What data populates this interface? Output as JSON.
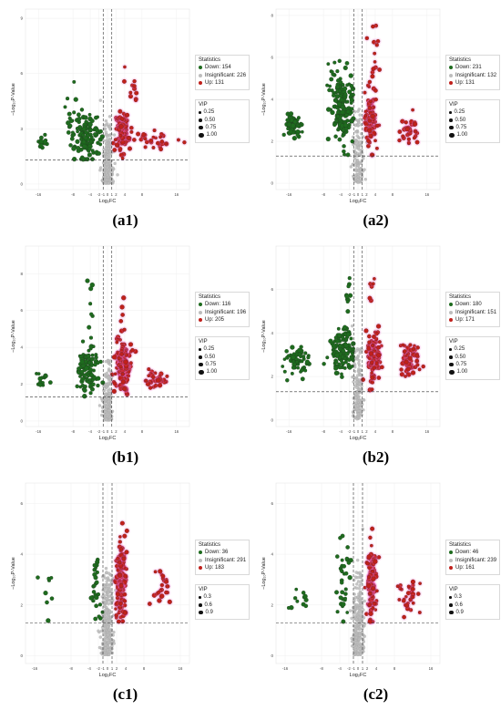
{
  "colors": {
    "down": "#1e6b1e",
    "insig": "#bdbdbd",
    "up": "#c0201b",
    "halo": "#ff6ad5"
  },
  "legend_titles": {
    "stats": "Statistics",
    "vip": "VIP"
  },
  "panels": [
    {
      "id": "a1",
      "label": "(a1)",
      "down": 154,
      "insig": 226,
      "up": 131,
      "xmin": -19,
      "xmax": 19,
      "ymin": -0.3,
      "ymax": 9.5,
      "xticks": [
        -16,
        -8,
        -4,
        -2,
        -1,
        0,
        1,
        2,
        4,
        8,
        16
      ],
      "yticks": [
        0,
        3,
        6,
        9
      ],
      "vip": [
        "0.25",
        "0.50",
        "0.75",
        "1.00"
      ],
      "down_clusters": [
        [
          -5,
          2.5,
          2.8,
          1.2,
          120
        ],
        [
          -15,
          2.3,
          1.2,
          0.4,
          14
        ],
        [
          -8,
          3.5,
          1.5,
          1.5,
          20
        ]
      ],
      "up_clusters": [
        [
          3.5,
          2.8,
          1.5,
          1.2,
          90
        ],
        [
          11,
          2.4,
          3.5,
          0.4,
          30
        ],
        [
          6,
          5.5,
          1.5,
          1.5,
          11
        ]
      ]
    },
    {
      "id": "a2",
      "label": "(a2)",
      "down": 231,
      "insig": 132,
      "up": 131,
      "xmin": -19,
      "xmax": 19,
      "ymin": -0.3,
      "ymax": 8.3,
      "xticks": [
        -16,
        -8,
        -4,
        -2,
        -1,
        0,
        1,
        2,
        4,
        8,
        16
      ],
      "yticks": [
        0,
        2,
        4,
        6,
        8
      ],
      "vip": [
        "0.25",
        "0.50",
        "0.75",
        "1.00"
      ],
      "down_clusters": [
        [
          -3.5,
          3.5,
          2.0,
          1.4,
          160
        ],
        [
          -15,
          2.7,
          1.5,
          0.5,
          60
        ],
        [
          -6,
          5.0,
          2.0,
          1.2,
          11
        ]
      ],
      "up_clusters": [
        [
          3.0,
          3.2,
          1.2,
          1.3,
          85
        ],
        [
          12,
          2.5,
          2.0,
          0.5,
          35
        ],
        [
          4,
          6.2,
          1.0,
          1.2,
          11
        ]
      ]
    },
    {
      "id": "b1",
      "label": "(b1)",
      "down": 116,
      "insig": 196,
      "up": 205,
      "xmin": -19,
      "xmax": 19,
      "ymin": -0.3,
      "ymax": 9.5,
      "xticks": [
        -16,
        -8,
        -4,
        -2,
        -1,
        0,
        1,
        2,
        4,
        8,
        16
      ],
      "yticks": [
        0,
        2,
        4,
        6,
        8
      ],
      "vip": [
        "0.25",
        "0.50",
        "0.75",
        "1.00"
      ],
      "down_clusters": [
        [
          -4.5,
          2.8,
          2.0,
          1.3,
          95
        ],
        [
          -15,
          2.2,
          1.5,
          0.5,
          14
        ],
        [
          -4,
          6.5,
          1.0,
          1.2,
          7
        ]
      ],
      "up_clusters": [
        [
          3.5,
          3.0,
          1.5,
          1.2,
          170
        ],
        [
          11,
          2.2,
          2.5,
          0.5,
          30
        ],
        [
          4,
          5.5,
          1.0,
          1.2,
          5
        ]
      ]
    },
    {
      "id": "b2",
      "label": "(b2)",
      "down": 180,
      "insig": 151,
      "up": 171,
      "xmin": -19,
      "xmax": 19,
      "ymin": -0.3,
      "ymax": 8.0,
      "xticks": [
        -16,
        -8,
        -4,
        -2,
        -1,
        0,
        1,
        2,
        4,
        8,
        16
      ],
      "yticks": [
        0,
        2,
        4,
        6
      ],
      "vip": [
        "0.25",
        "0.50",
        "0.75",
        "1.00"
      ],
      "down_clusters": [
        [
          -4,
          3.2,
          2.5,
          1.1,
          110
        ],
        [
          -14,
          2.8,
          2.5,
          0.6,
          60
        ],
        [
          -2,
          6.0,
          1.0,
          1.0,
          10
        ]
      ],
      "up_clusters": [
        [
          3.5,
          3.0,
          1.3,
          1.1,
          100
        ],
        [
          12,
          2.8,
          2.0,
          0.7,
          65
        ],
        [
          3,
          6.0,
          0.8,
          0.8,
          6
        ]
      ]
    },
    {
      "id": "c1",
      "label": "(c1)",
      "down": 36,
      "insig": 291,
      "up": 183,
      "xmin": -18,
      "xmax": 18,
      "ymin": -0.3,
      "ymax": 6.8,
      "xticks": [
        -16,
        -8,
        -4,
        -2,
        -1,
        0,
        1,
        2,
        4,
        8,
        16
      ],
      "yticks": [
        0,
        2,
        4,
        6
      ],
      "vip": [
        "0.3",
        "0.6",
        "0.9"
      ],
      "down_clusters": [
        [
          -2.5,
          2.5,
          1.2,
          1.3,
          28
        ],
        [
          -13,
          2.5,
          2.0,
          1.2,
          8
        ]
      ],
      "up_clusters": [
        [
          3.0,
          3.0,
          0.9,
          1.4,
          160
        ],
        [
          12,
          2.5,
          1.5,
          0.8,
          23
        ]
      ]
    },
    {
      "id": "c2",
      "label": "(c2)",
      "down": 46,
      "insig": 239,
      "up": 161,
      "xmin": -18,
      "xmax": 18,
      "ymin": -0.3,
      "ymax": 6.8,
      "xticks": [
        -16,
        -8,
        -4,
        -2,
        -1,
        0,
        1,
        2,
        4,
        8,
        16
      ],
      "yticks": [
        0,
        2,
        4,
        6
      ],
      "vip": [
        "0.3",
        "0.6",
        "0.9"
      ],
      "down_clusters": [
        [
          -3,
          3.0,
          1.2,
          1.5,
          35
        ],
        [
          -13,
          2.3,
          2.0,
          0.6,
          11
        ]
      ],
      "up_clusters": [
        [
          3.0,
          3.0,
          0.9,
          1.4,
          130
        ],
        [
          11,
          2.4,
          1.8,
          0.7,
          31
        ]
      ]
    }
  ],
  "axis": {
    "xlabel": "Log₂FC",
    "ylabel": "−Log₁₀P-Value",
    "hline": 1.3,
    "vlines": [
      -1,
      1
    ]
  }
}
